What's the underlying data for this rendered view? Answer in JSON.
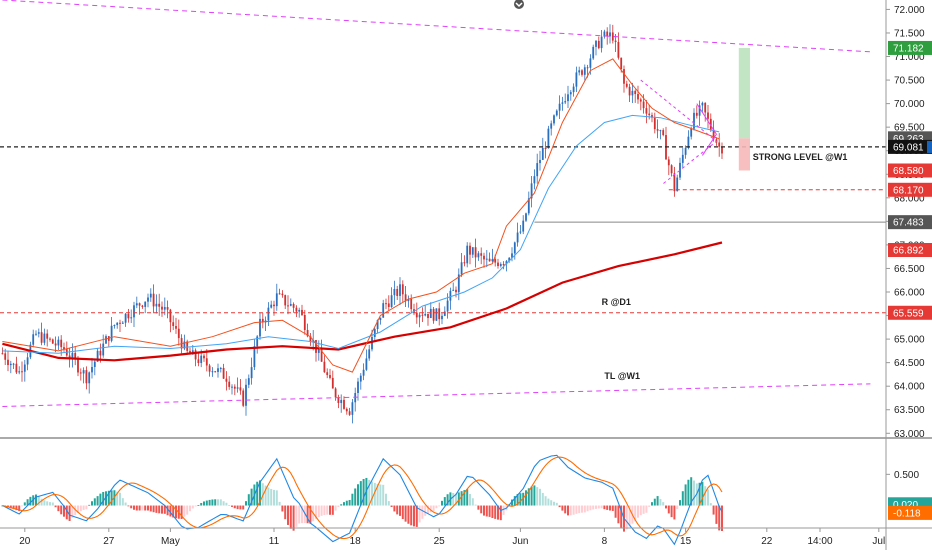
{
  "colors": {
    "bull": "#2a6fbf",
    "bear": "#d32f2f",
    "ema_fast": "#f4511e",
    "ema_mid": "#42a5f5",
    "sma_slow": "#d50000",
    "trendline": "#e040fb",
    "level_red": "#e53935",
    "level_black": "#222222",
    "level_gray": "#888888",
    "macd_line": "#1e88e5",
    "signal_line": "#ff6d00",
    "hist_up_strong": "#26a69a",
    "hist_up_weak": "#b2dfdb",
    "hist_down_strong": "#ef5350",
    "hist_down_weak": "#ffcdd2",
    "target_zone": "#b7e0b8",
    "stop_zone": "#f6b8b8"
  },
  "top_icon": "chevron-down-icon",
  "chart_data": [
    {
      "type": "candlestick",
      "price_axis": {
        "ylim": [
          62.9,
          72.2
        ],
        "ticks": [
          "63.000",
          "63.500",
          "64.000",
          "64.500",
          "65.000",
          "65.500",
          "66.000",
          "66.500",
          "67.000",
          "67.500",
          "68.000",
          "68.500",
          "69.000",
          "69.500",
          "70.000",
          "70.500",
          "71.000",
          "71.500",
          "72.000"
        ]
      },
      "time_axis": {
        "labels": [
          "20",
          "27",
          "May",
          "11",
          "18",
          "25",
          "Jun",
          "8",
          "15",
          "22",
          "14:00",
          "Jul"
        ]
      },
      "key_prices": {
        "start": 64.7,
        "low": 63.5,
        "rally_top": 71.45,
        "current": 69.08
      },
      "moving_averages": {
        "ema_fast": [
          [
            0,
            64.95
          ],
          [
            20,
            64.75
          ],
          [
            40,
            65.05
          ],
          [
            60,
            64.85
          ],
          [
            75,
            65.05
          ],
          [
            90,
            65.35
          ],
          [
            100,
            65.4
          ],
          [
            110,
            65.05
          ],
          [
            118,
            64.45
          ],
          [
            125,
            64.3
          ],
          [
            135,
            65.5
          ],
          [
            145,
            65.85
          ],
          [
            155,
            66.0
          ],
          [
            165,
            66.4
          ],
          [
            175,
            66.6
          ],
          [
            180,
            67.4
          ],
          [
            190,
            68.1
          ],
          [
            200,
            69.6
          ],
          [
            210,
            70.7
          ],
          [
            218,
            70.95
          ],
          [
            225,
            70.4
          ],
          [
            232,
            69.9
          ],
          [
            240,
            69.6
          ],
          [
            247,
            69.45
          ],
          [
            256,
            69.25
          ]
        ],
        "ema_mid": [
          [
            0,
            64.75
          ],
          [
            20,
            64.7
          ],
          [
            40,
            64.85
          ],
          [
            60,
            64.8
          ],
          [
            80,
            64.9
          ],
          [
            95,
            65.05
          ],
          [
            110,
            64.95
          ],
          [
            120,
            64.8
          ],
          [
            135,
            65.15
          ],
          [
            150,
            65.7
          ],
          [
            165,
            66.0
          ],
          [
            175,
            66.3
          ],
          [
            185,
            66.9
          ],
          [
            195,
            68.2
          ],
          [
            205,
            69.1
          ],
          [
            215,
            69.6
          ],
          [
            225,
            69.75
          ],
          [
            235,
            69.7
          ],
          [
            245,
            69.55
          ],
          [
            256,
            69.4
          ]
        ],
        "sma_slow": [
          [
            0,
            64.9
          ],
          [
            20,
            64.6
          ],
          [
            40,
            64.55
          ],
          [
            60,
            64.65
          ],
          [
            80,
            64.78
          ],
          [
            100,
            64.85
          ],
          [
            120,
            64.78
          ],
          [
            140,
            65.05
          ],
          [
            160,
            65.25
          ],
          [
            180,
            65.65
          ],
          [
            200,
            66.2
          ],
          [
            220,
            66.55
          ],
          [
            240,
            66.8
          ],
          [
            257,
            67.05
          ]
        ]
      },
      "levels": [
        {
          "label": "STRONG LEVEL @W1",
          "price": 69.081,
          "style": "dashed-black"
        },
        {
          "label": "R @D1",
          "price": 65.559,
          "style": "dashed-red"
        },
        {
          "label": "",
          "price": 68.17,
          "style": "dashed-red"
        },
        {
          "label": "",
          "price": 67.483,
          "style": "solid-gray"
        }
      ],
      "trendlines": [
        {
          "label": "",
          "from": [
            0,
            72.2
          ],
          "to": [
            310,
            71.1
          ]
        },
        {
          "label": "TL @W1",
          "from": [
            0,
            63.57
          ],
          "to": [
            310,
            64.05
          ]
        }
      ],
      "pattern_triangle": {
        "from_bar": 228,
        "to_bar": 255,
        "top": 70.5,
        "bottom": 68.3
      },
      "position_tool": {
        "entry": 69.263,
        "target": 71.182,
        "stop": 68.58
      },
      "price_tags": [
        {
          "text": "71.182",
          "kind": "green"
        },
        {
          "text": "69.263",
          "kind": "gray"
        },
        {
          "text": "69.081",
          "kind": "black"
        },
        {
          "text": "68.580",
          "kind": "red"
        },
        {
          "text": "68.170",
          "kind": "red"
        },
        {
          "text": "67.483",
          "kind": "gray"
        },
        {
          "text": "66.892",
          "kind": "red"
        },
        {
          "text": "65.559",
          "kind": "red"
        }
      ]
    },
    {
      "type": "macd",
      "ylim": [
        -0.36,
        1.05
      ],
      "ticks": [
        "0.500"
      ],
      "tags": [
        {
          "text": "0.020",
          "kind": "teal"
        },
        {
          "text": "-0.118",
          "kind": "orange"
        }
      ]
    }
  ]
}
